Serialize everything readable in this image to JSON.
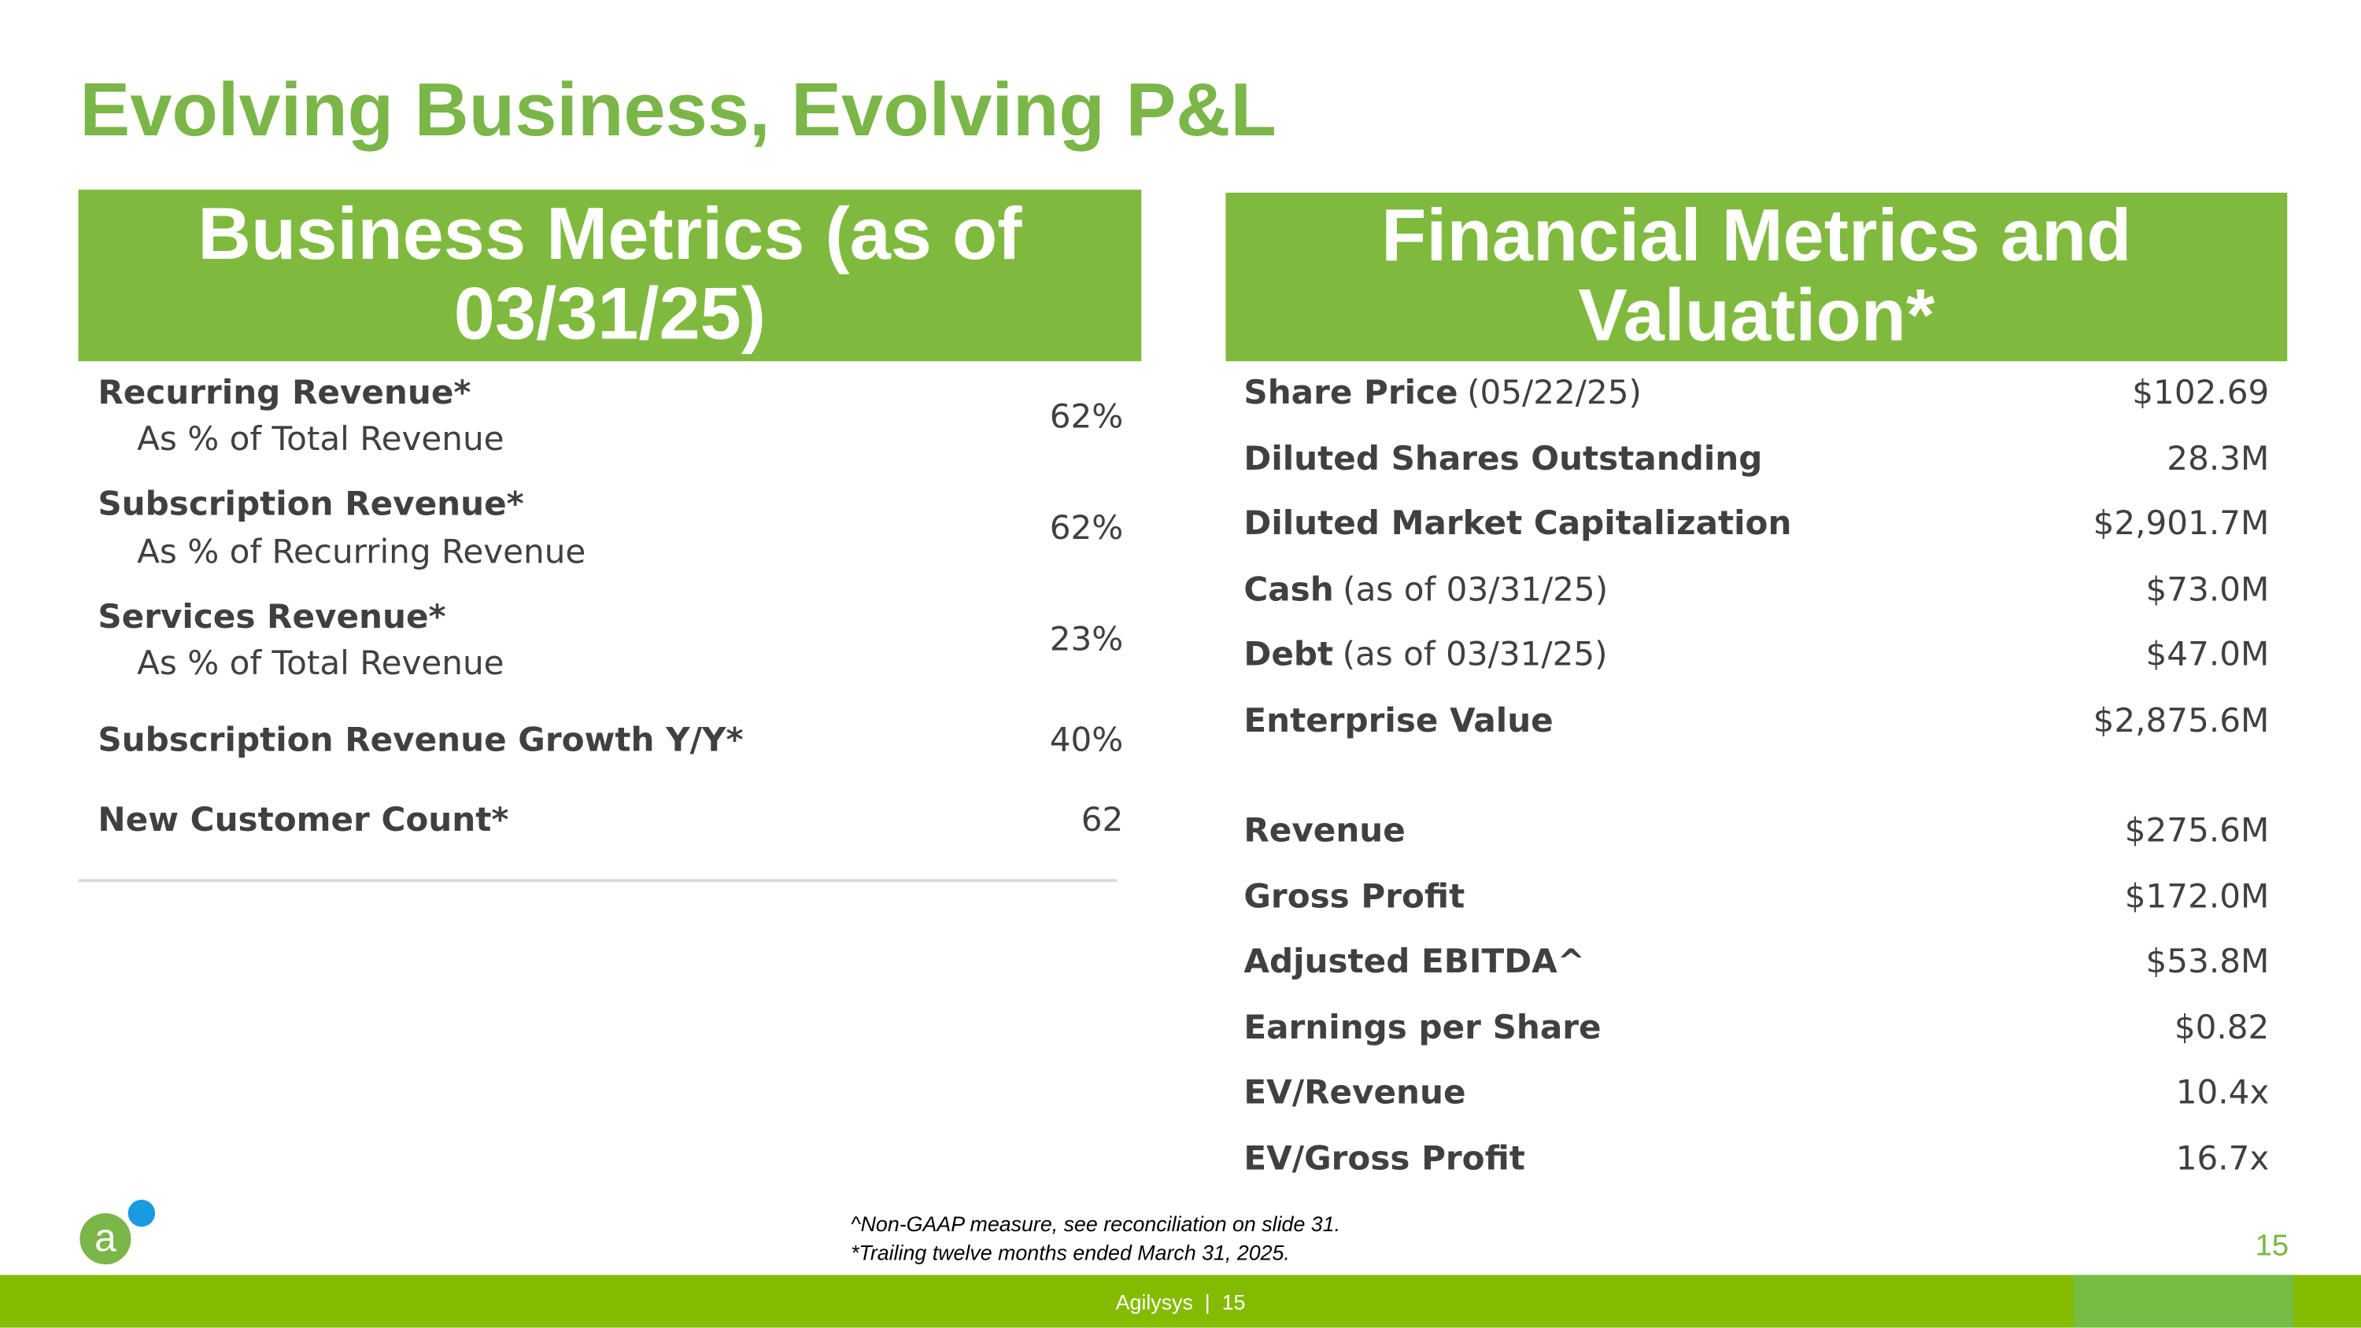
{
  "title": "Evolving Business, Evolving P&L",
  "business": {
    "header": "Business Metrics (as of 03/31/25)",
    "rows": [
      {
        "label": "Recurring Revenue*",
        "sub": "As % of Total Revenue",
        "value": "62%"
      },
      {
        "label": "Subscription Revenue*",
        "sub": "As % of Recurring Revenue",
        "value": "62%"
      },
      {
        "label": "Services Revenue*",
        "sub": "As % of Total Revenue",
        "value": "23%"
      },
      {
        "label": "Subscription Revenue Growth Y/Y*",
        "value": "40%"
      },
      {
        "label": "New Customer Count*",
        "value": "62"
      }
    ]
  },
  "financial": {
    "header": "Financial Metrics and Valuation*",
    "rows": [
      {
        "label": "Share Price",
        "note": "(05/22/25)",
        "value": "$102.69"
      },
      {
        "label": "Diluted Shares Outstanding",
        "value": "28.3M"
      },
      {
        "label": "Diluted Market Capitalization",
        "value": "$2,901.7M"
      },
      {
        "label": "Cash",
        "note": "(as of 03/31/25)",
        "value": "$73.0M"
      },
      {
        "label": "Debt",
        "note": "(as of 03/31/25)",
        "value": "$47.0M"
      },
      {
        "label": "Enterprise Value",
        "value": "$2,875.6M"
      },
      {
        "label": "Revenue",
        "value": "$275.6M"
      },
      {
        "label": "Gross Profit",
        "value": "$172.0M"
      },
      {
        "label": "Adjusted EBITDA^",
        "value": "$53.8M"
      },
      {
        "label": "Earnings per Share",
        "value": "$0.82"
      },
      {
        "label": "EV/Revenue",
        "value": "10.4x"
      },
      {
        "label": "EV/Gross Profit",
        "value": "16.7x"
      }
    ]
  },
  "footnotes": [
    "^Non-GAAP measure, see reconciliation on slide 31.",
    "*Trailing twelve months ended March 31, 2025."
  ],
  "page_number": "15",
  "footer": "Agilysys  |  15"
}
